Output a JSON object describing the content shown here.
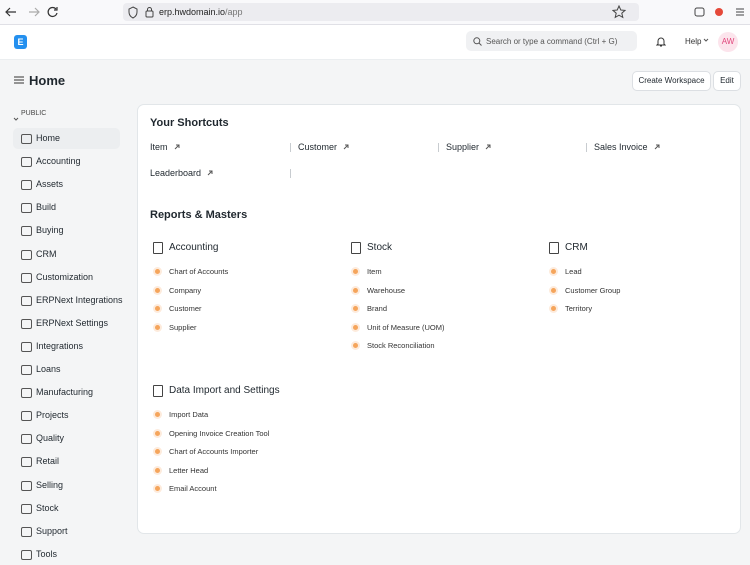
{
  "browser": {
    "url_host": "erp.hwdomain.io",
    "url_path": "/app"
  },
  "navbar": {
    "logo": "E",
    "search_placeholder": "Search or type a command (Ctrl + G)",
    "help": "Help",
    "avatar": "AW"
  },
  "page": {
    "title": "Home",
    "buttons": [
      "Create Workspace",
      "Edit"
    ]
  },
  "sidebar": {
    "section": "PUBLIC",
    "items": [
      "Home",
      "Accounting",
      "Assets",
      "Build",
      "Buying",
      "CRM",
      "Customization",
      "ERPNext Integrations",
      "ERPNext Settings",
      "Integrations",
      "Loans",
      "Manufacturing",
      "Projects",
      "Quality",
      "Retail",
      "Selling",
      "Stock",
      "Support",
      "Tools"
    ]
  },
  "shortcuts": {
    "title": "Your Shortcuts",
    "items": [
      "Item",
      "Customer",
      "Supplier",
      "Sales Invoice",
      "Leaderboard"
    ]
  },
  "reports": {
    "title": "Reports & Masters",
    "cards": [
      {
        "title": "Accounting",
        "links": [
          "Chart of Accounts",
          "Company",
          "Customer",
          "Supplier"
        ]
      },
      {
        "title": "Stock",
        "links": [
          "Item",
          "Warehouse",
          "Brand",
          "Unit of Measure (UOM)",
          "Stock Reconciliation"
        ]
      },
      {
        "title": "CRM",
        "links": [
          "Lead",
          "Customer Group",
          "Territory"
        ]
      },
      {
        "title": "Data Import and Settings",
        "links": [
          "Import Data",
          "Opening Invoice Creation Tool",
          "Chart of Accounts Importer",
          "Letter Head",
          "Email Account"
        ]
      }
    ]
  }
}
